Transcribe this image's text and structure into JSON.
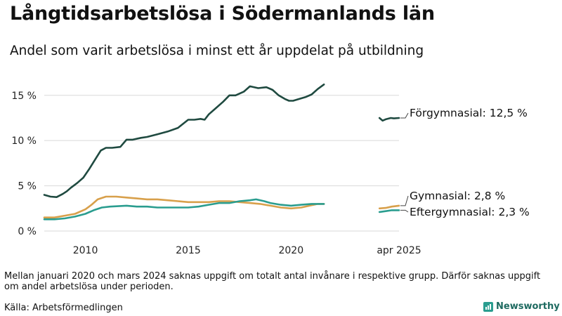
{
  "header": {
    "title": "Långtidsarbetslösa i Södermanlands län",
    "subtitle": "Andel som varit arbetslösa i minst ett år uppdelat på utbildning"
  },
  "footer": {
    "note": "Mellan januari 2020 och mars 2024 saknas uppgift om totalt antal invånare i respektive grupp. Därför saknas uppgift om andel arbetslösa under perioden.",
    "source": "Källa: Arbetsförmedlingen",
    "brand": "Newsworthy"
  },
  "chart_data": {
    "type": "line",
    "title": "Långtidsarbetslösa i Södermanlands län",
    "subtitle": "Andel som varit arbetslösa i minst ett år uppdelat på utbildning",
    "xlabel": "",
    "ylabel": "",
    "xlim": [
      2008,
      2025.25
    ],
    "ylim": [
      0,
      17
    ],
    "yticks": [
      0,
      5,
      10,
      15
    ],
    "ytick_labels": [
      "0 %",
      "5 %",
      "10 %",
      "15 %"
    ],
    "xticks": [
      2010,
      2015,
      2020,
      2025.25
    ],
    "xtick_labels": [
      "2010",
      "2015",
      "2020",
      "apr 2025"
    ],
    "grid": true,
    "series": [
      {
        "name": "Förgymnasial",
        "color": "#1f4a40",
        "label": "Förgymnasial: 12,5 %",
        "segments": [
          [
            [
              2008.0,
              4.0
            ],
            [
              2008.3,
              3.8
            ],
            [
              2008.6,
              3.75
            ],
            [
              2008.9,
              4.1
            ],
            [
              2009.1,
              4.4
            ],
            [
              2009.3,
              4.8
            ],
            [
              2009.6,
              5.3
            ],
            [
              2009.9,
              5.9
            ],
            [
              2010.2,
              6.9
            ],
            [
              2010.5,
              8.0
            ],
            [
              2010.75,
              8.9
            ],
            [
              2011.0,
              9.2
            ],
            [
              2011.3,
              9.2
            ],
            [
              2011.7,
              9.3
            ],
            [
              2012.0,
              10.1
            ],
            [
              2012.3,
              10.1
            ],
            [
              2012.7,
              10.3
            ],
            [
              2013.0,
              10.4
            ],
            [
              2013.5,
              10.7
            ],
            [
              2014.0,
              11.0
            ],
            [
              2014.5,
              11.4
            ],
            [
              2015.0,
              12.3
            ],
            [
              2015.3,
              12.3
            ],
            [
              2015.6,
              12.4
            ],
            [
              2015.8,
              12.3
            ],
            [
              2016.0,
              12.9
            ],
            [
              2016.3,
              13.5
            ],
            [
              2016.7,
              14.3
            ],
            [
              2017.0,
              15.0
            ],
            [
              2017.3,
              15.0
            ],
            [
              2017.7,
              15.4
            ],
            [
              2018.0,
              16.0
            ],
            [
              2018.4,
              15.8
            ],
            [
              2018.8,
              15.9
            ],
            [
              2019.1,
              15.6
            ],
            [
              2019.4,
              15.0
            ],
            [
              2019.7,
              14.6
            ],
            [
              2019.9,
              14.4
            ],
            [
              2020.1,
              14.4
            ],
            [
              2020.4,
              14.6
            ],
            [
              2020.7,
              14.8
            ],
            [
              2021.0,
              15.1
            ],
            [
              2021.3,
              15.7
            ],
            [
              2021.6,
              16.2
            ]
          ],
          [
            [
              2024.3,
              12.5
            ],
            [
              2024.45,
              12.2
            ],
            [
              2024.6,
              12.35
            ],
            [
              2024.85,
              12.5
            ],
            [
              2025.0,
              12.45
            ],
            [
              2025.25,
              12.5
            ]
          ]
        ]
      },
      {
        "name": "Gymnasial",
        "color": "#d8a04b",
        "label": "Gymnasial:  2,8 %",
        "segments": [
          [
            [
              2008.0,
              1.5
            ],
            [
              2008.5,
              1.5
            ],
            [
              2009.0,
              1.7
            ],
            [
              2009.5,
              1.9
            ],
            [
              2010.0,
              2.4
            ],
            [
              2010.3,
              2.9
            ],
            [
              2010.6,
              3.5
            ],
            [
              2011.0,
              3.8
            ],
            [
              2011.5,
              3.8
            ],
            [
              2012.0,
              3.7
            ],
            [
              2012.5,
              3.6
            ],
            [
              2013.0,
              3.5
            ],
            [
              2013.5,
              3.5
            ],
            [
              2014.0,
              3.4
            ],
            [
              2014.5,
              3.3
            ],
            [
              2015.0,
              3.2
            ],
            [
              2015.5,
              3.2
            ],
            [
              2016.0,
              3.2
            ],
            [
              2016.5,
              3.3
            ],
            [
              2017.0,
              3.3
            ],
            [
              2017.5,
              3.2
            ],
            [
              2018.0,
              3.1
            ],
            [
              2018.5,
              3.0
            ],
            [
              2019.0,
              2.8
            ],
            [
              2019.5,
              2.6
            ],
            [
              2020.0,
              2.5
            ],
            [
              2020.5,
              2.6
            ],
            [
              2020.9,
              2.8
            ],
            [
              2021.3,
              3.0
            ],
            [
              2021.6,
              3.0
            ]
          ],
          [
            [
              2024.3,
              2.5
            ],
            [
              2024.6,
              2.55
            ],
            [
              2024.9,
              2.7
            ],
            [
              2025.25,
              2.8
            ]
          ]
        ]
      },
      {
        "name": "Eftergymnasial",
        "color": "#2a9d8f",
        "label": "Eftergymnasial:  2,3 %",
        "segments": [
          [
            [
              2008.0,
              1.3
            ],
            [
              2008.5,
              1.3
            ],
            [
              2009.0,
              1.4
            ],
            [
              2009.5,
              1.6
            ],
            [
              2010.0,
              1.9
            ],
            [
              2010.4,
              2.3
            ],
            [
              2010.8,
              2.6
            ],
            [
              2011.2,
              2.7
            ],
            [
              2012.0,
              2.8
            ],
            [
              2012.5,
              2.7
            ],
            [
              2013.0,
              2.7
            ],
            [
              2013.5,
              2.6
            ],
            [
              2014.0,
              2.6
            ],
            [
              2014.5,
              2.6
            ],
            [
              2015.0,
              2.6
            ],
            [
              2015.5,
              2.7
            ],
            [
              2016.0,
              2.9
            ],
            [
              2016.5,
              3.1
            ],
            [
              2017.0,
              3.1
            ],
            [
              2017.5,
              3.3
            ],
            [
              2018.0,
              3.4
            ],
            [
              2018.3,
              3.5
            ],
            [
              2018.7,
              3.3
            ],
            [
              2019.0,
              3.1
            ],
            [
              2019.5,
              2.9
            ],
            [
              2020.0,
              2.8
            ],
            [
              2020.5,
              2.9
            ],
            [
              2021.0,
              3.0
            ],
            [
              2021.6,
              3.0
            ]
          ],
          [
            [
              2024.3,
              2.1
            ],
            [
              2024.6,
              2.2
            ],
            [
              2024.9,
              2.3
            ],
            [
              2025.25,
              2.3
            ]
          ]
        ]
      }
    ]
  }
}
